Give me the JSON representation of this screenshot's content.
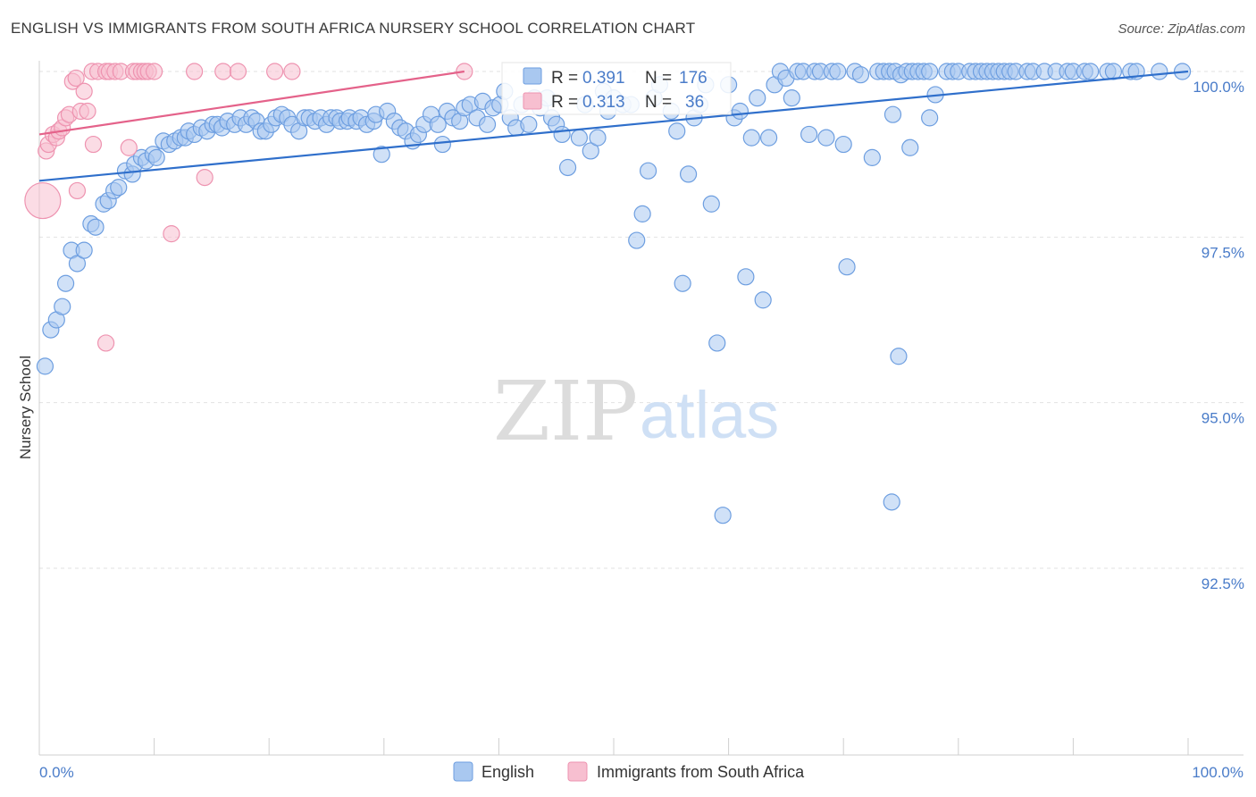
{
  "header": {
    "title": "ENGLISH VS IMMIGRANTS FROM SOUTH AFRICA NURSERY SCHOOL CORRELATION CHART",
    "source": "Source: ZipAtlas.com"
  },
  "watermark": {
    "zip": "ZIP",
    "atlas": "atlas"
  },
  "colors": {
    "english_fill": "#a9c8f0",
    "english_stroke": "#6d9ee0",
    "english_line": "#2f6fcb",
    "sa_fill": "#f7bfd0",
    "sa_stroke": "#ee93b0",
    "sa_line": "#e4628a",
    "tick": "#4a7cc9",
    "grid": "#e2e2e2"
  },
  "chart_data": {
    "type": "scatter",
    "title": "ENGLISH VS IMMIGRANTS FROM SOUTH AFRICA NURSERY SCHOOL CORRELATION CHART",
    "xlabel": "",
    "ylabel": "Nursery School",
    "xlim": [
      0,
      100
    ],
    "ylim": [
      90.0,
      100.3
    ],
    "x_tick_labels": [
      "0.0%",
      "100.0%"
    ],
    "y_ticks": [
      100.0,
      97.5,
      95.0,
      92.5
    ],
    "y_tick_labels": [
      "100.0%",
      "97.5%",
      "95.0%",
      "92.5%"
    ],
    "legend": [
      "English",
      "Immigrants from South Africa"
    ],
    "stats": [
      {
        "r_label": "R =",
        "r": "0.391",
        "n_label": "N =",
        "n": "176"
      },
      {
        "r_label": "R =",
        "r": "0.313",
        "n_label": "N =",
        "n": "36"
      }
    ],
    "series": [
      {
        "name": "English",
        "trend": [
          [
            0,
            98.35
          ],
          [
            100,
            100.0
          ]
        ],
        "points": [
          [
            0.5,
            95.55
          ],
          [
            1.0,
            96.1
          ],
          [
            1.5,
            96.25
          ],
          [
            2.0,
            96.45
          ],
          [
            2.3,
            96.8
          ],
          [
            2.8,
            97.3
          ],
          [
            3.3,
            97.1
          ],
          [
            3.9,
            97.3
          ],
          [
            4.5,
            97.7
          ],
          [
            4.9,
            97.65
          ],
          [
            5.6,
            98.0
          ],
          [
            6.0,
            98.05
          ],
          [
            6.5,
            98.2
          ],
          [
            6.9,
            98.25
          ],
          [
            7.5,
            98.5
          ],
          [
            8.1,
            98.45
          ],
          [
            8.3,
            98.6
          ],
          [
            8.9,
            98.7
          ],
          [
            9.3,
            98.65
          ],
          [
            9.9,
            98.75
          ],
          [
            10.2,
            98.7
          ],
          [
            10.8,
            98.95
          ],
          [
            11.3,
            98.9
          ],
          [
            11.8,
            98.95
          ],
          [
            12.3,
            99.0
          ],
          [
            12.7,
            99.0
          ],
          [
            13.0,
            99.1
          ],
          [
            13.5,
            99.05
          ],
          [
            14.1,
            99.15
          ],
          [
            14.6,
            99.1
          ],
          [
            15.1,
            99.2
          ],
          [
            15.5,
            99.2
          ],
          [
            15.9,
            99.15
          ],
          [
            16.4,
            99.25
          ],
          [
            17.0,
            99.2
          ],
          [
            17.5,
            99.3
          ],
          [
            18.0,
            99.2
          ],
          [
            18.5,
            99.3
          ],
          [
            18.9,
            99.25
          ],
          [
            19.3,
            99.1
          ],
          [
            19.7,
            99.1
          ],
          [
            20.2,
            99.2
          ],
          [
            20.6,
            99.3
          ],
          [
            21.1,
            99.35
          ],
          [
            21.6,
            99.3
          ],
          [
            22.0,
            99.2
          ],
          [
            22.6,
            99.1
          ],
          [
            23.1,
            99.3
          ],
          [
            23.5,
            99.3
          ],
          [
            24.0,
            99.25
          ],
          [
            24.5,
            99.3
          ],
          [
            25.0,
            99.2
          ],
          [
            25.4,
            99.3
          ],
          [
            25.9,
            99.3
          ],
          [
            26.2,
            99.25
          ],
          [
            26.8,
            99.25
          ],
          [
            27.0,
            99.3
          ],
          [
            27.6,
            99.25
          ],
          [
            28.0,
            99.3
          ],
          [
            28.5,
            99.2
          ],
          [
            29.1,
            99.25
          ],
          [
            29.3,
            99.35
          ],
          [
            29.8,
            98.75
          ],
          [
            30.3,
            99.4
          ],
          [
            30.9,
            99.25
          ],
          [
            31.4,
            99.15
          ],
          [
            31.9,
            99.1
          ],
          [
            32.5,
            98.95
          ],
          [
            33.0,
            99.05
          ],
          [
            33.5,
            99.2
          ],
          [
            34.1,
            99.35
          ],
          [
            34.7,
            99.2
          ],
          [
            35.1,
            98.9
          ],
          [
            35.5,
            99.4
          ],
          [
            36.0,
            99.3
          ],
          [
            36.6,
            99.25
          ],
          [
            37.0,
            99.45
          ],
          [
            37.5,
            99.5
          ],
          [
            38.1,
            99.3
          ],
          [
            38.6,
            99.55
          ],
          [
            39.0,
            99.2
          ],
          [
            39.5,
            99.45
          ],
          [
            40.1,
            99.5
          ],
          [
            40.5,
            99.7
          ],
          [
            41.0,
            99.3
          ],
          [
            41.5,
            99.15
          ],
          [
            42.0,
            99.5
          ],
          [
            42.6,
            99.2
          ],
          [
            43.1,
            99.6
          ],
          [
            43.6,
            99.45
          ],
          [
            44.2,
            99.6
          ],
          [
            44.6,
            99.3
          ],
          [
            45.0,
            99.2
          ],
          [
            45.5,
            99.05
          ],
          [
            46.0,
            98.55
          ],
          [
            47.0,
            99.0
          ],
          [
            47.5,
            99.5
          ],
          [
            48.0,
            98.8
          ],
          [
            48.6,
            99.0
          ],
          [
            49.1,
            99.7
          ],
          [
            49.5,
            99.4
          ],
          [
            50.0,
            99.6
          ],
          [
            50.8,
            99.5
          ],
          [
            51.5,
            99.5
          ],
          [
            52.0,
            97.45
          ],
          [
            52.5,
            97.85
          ],
          [
            53.0,
            98.5
          ],
          [
            53.5,
            99.6
          ],
          [
            54.0,
            99.8
          ],
          [
            55.0,
            99.4
          ],
          [
            55.5,
            99.1
          ],
          [
            56.0,
            96.8
          ],
          [
            56.5,
            98.45
          ],
          [
            57.0,
            99.3
          ],
          [
            57.5,
            99.5
          ],
          [
            58.0,
            99.8
          ],
          [
            58.5,
            98.0
          ],
          [
            59.0,
            95.9
          ],
          [
            59.5,
            93.3
          ],
          [
            60.0,
            99.8
          ],
          [
            60.5,
            99.3
          ],
          [
            61.0,
            99.4
          ],
          [
            61.5,
            96.9
          ],
          [
            62.0,
            99.0
          ],
          [
            62.5,
            99.6
          ],
          [
            63.0,
            96.55
          ],
          [
            63.5,
            99.0
          ],
          [
            64.0,
            99.8
          ],
          [
            64.5,
            100.0
          ],
          [
            65.0,
            99.9
          ],
          [
            65.5,
            99.6
          ],
          [
            66.0,
            100.0
          ],
          [
            66.5,
            100.0
          ],
          [
            67.0,
            99.05
          ],
          [
            67.5,
            100.0
          ],
          [
            68.0,
            100.0
          ],
          [
            68.5,
            99.0
          ],
          [
            69.0,
            100.0
          ],
          [
            69.5,
            100.0
          ],
          [
            70.0,
            98.9
          ],
          [
            70.3,
            97.05
          ],
          [
            71.0,
            100.0
          ],
          [
            71.5,
            99.95
          ],
          [
            72.5,
            98.7
          ],
          [
            73.0,
            100.0
          ],
          [
            73.5,
            100.0
          ],
          [
            74.0,
            100.0
          ],
          [
            74.5,
            100.0
          ],
          [
            75.0,
            99.95
          ],
          [
            75.5,
            100.0
          ],
          [
            76.0,
            100.0
          ],
          [
            76.5,
            100.0
          ],
          [
            77.0,
            100.0
          ],
          [
            77.5,
            100.0
          ],
          [
            74.3,
            99.35
          ],
          [
            74.8,
            95.7
          ],
          [
            74.2,
            93.5
          ],
          [
            75.8,
            98.85
          ],
          [
            77.5,
            99.3
          ],
          [
            78.0,
            99.65
          ],
          [
            79.0,
            100.0
          ],
          [
            79.5,
            100.0
          ],
          [
            80.0,
            100.0
          ],
          [
            81.0,
            100.0
          ],
          [
            81.5,
            100.0
          ],
          [
            82.0,
            100.0
          ],
          [
            82.5,
            100.0
          ],
          [
            83.0,
            100.0
          ],
          [
            83.5,
            100.0
          ],
          [
            84.0,
            100.0
          ],
          [
            84.5,
            100.0
          ],
          [
            85.0,
            100.0
          ],
          [
            86.0,
            100.0
          ],
          [
            86.5,
            100.0
          ],
          [
            87.5,
            100.0
          ],
          [
            88.5,
            100.0
          ],
          [
            89.5,
            100.0
          ],
          [
            90.0,
            100.0
          ],
          [
            91.0,
            100.0
          ],
          [
            91.5,
            100.0
          ],
          [
            93.0,
            100.0
          ],
          [
            93.5,
            100.0
          ],
          [
            95.0,
            100.0
          ],
          [
            95.5,
            100.0
          ],
          [
            97.5,
            100.0
          ],
          [
            99.5,
            100.0
          ]
        ]
      },
      {
        "name": "Immigrants from South Africa",
        "trend": [
          [
            0,
            99.05
          ],
          [
            37,
            100.0
          ]
        ],
        "points": [
          [
            0.3,
            98.05
          ],
          [
            0.6,
            98.8
          ],
          [
            0.8,
            98.9
          ],
          [
            1.2,
            99.05
          ],
          [
            1.5,
            99.0
          ],
          [
            1.7,
            99.1
          ],
          [
            2.0,
            99.15
          ],
          [
            2.3,
            99.3
          ],
          [
            2.6,
            99.35
          ],
          [
            2.9,
            99.85
          ],
          [
            3.2,
            99.9
          ],
          [
            3.6,
            99.4
          ],
          [
            3.9,
            99.7
          ],
          [
            4.2,
            99.4
          ],
          [
            4.6,
            100.0
          ],
          [
            5.1,
            100.0
          ],
          [
            5.8,
            100.0
          ],
          [
            6.1,
            100.0
          ],
          [
            6.6,
            100.0
          ],
          [
            7.1,
            100.0
          ],
          [
            7.8,
            98.85
          ],
          [
            8.2,
            100.0
          ],
          [
            8.5,
            100.0
          ],
          [
            8.9,
            100.0
          ],
          [
            9.2,
            100.0
          ],
          [
            9.5,
            100.0
          ],
          [
            10.0,
            100.0
          ],
          [
            13.5,
            100.0
          ],
          [
            16.0,
            100.0
          ],
          [
            17.3,
            100.0
          ],
          [
            20.5,
            100.0
          ],
          [
            22.0,
            100.0
          ],
          [
            3.3,
            98.2
          ],
          [
            4.7,
            98.9
          ],
          [
            5.8,
            95.9
          ],
          [
            11.5,
            97.55
          ],
          [
            14.4,
            98.4
          ],
          [
            37.0,
            100.0
          ]
        ]
      }
    ]
  }
}
